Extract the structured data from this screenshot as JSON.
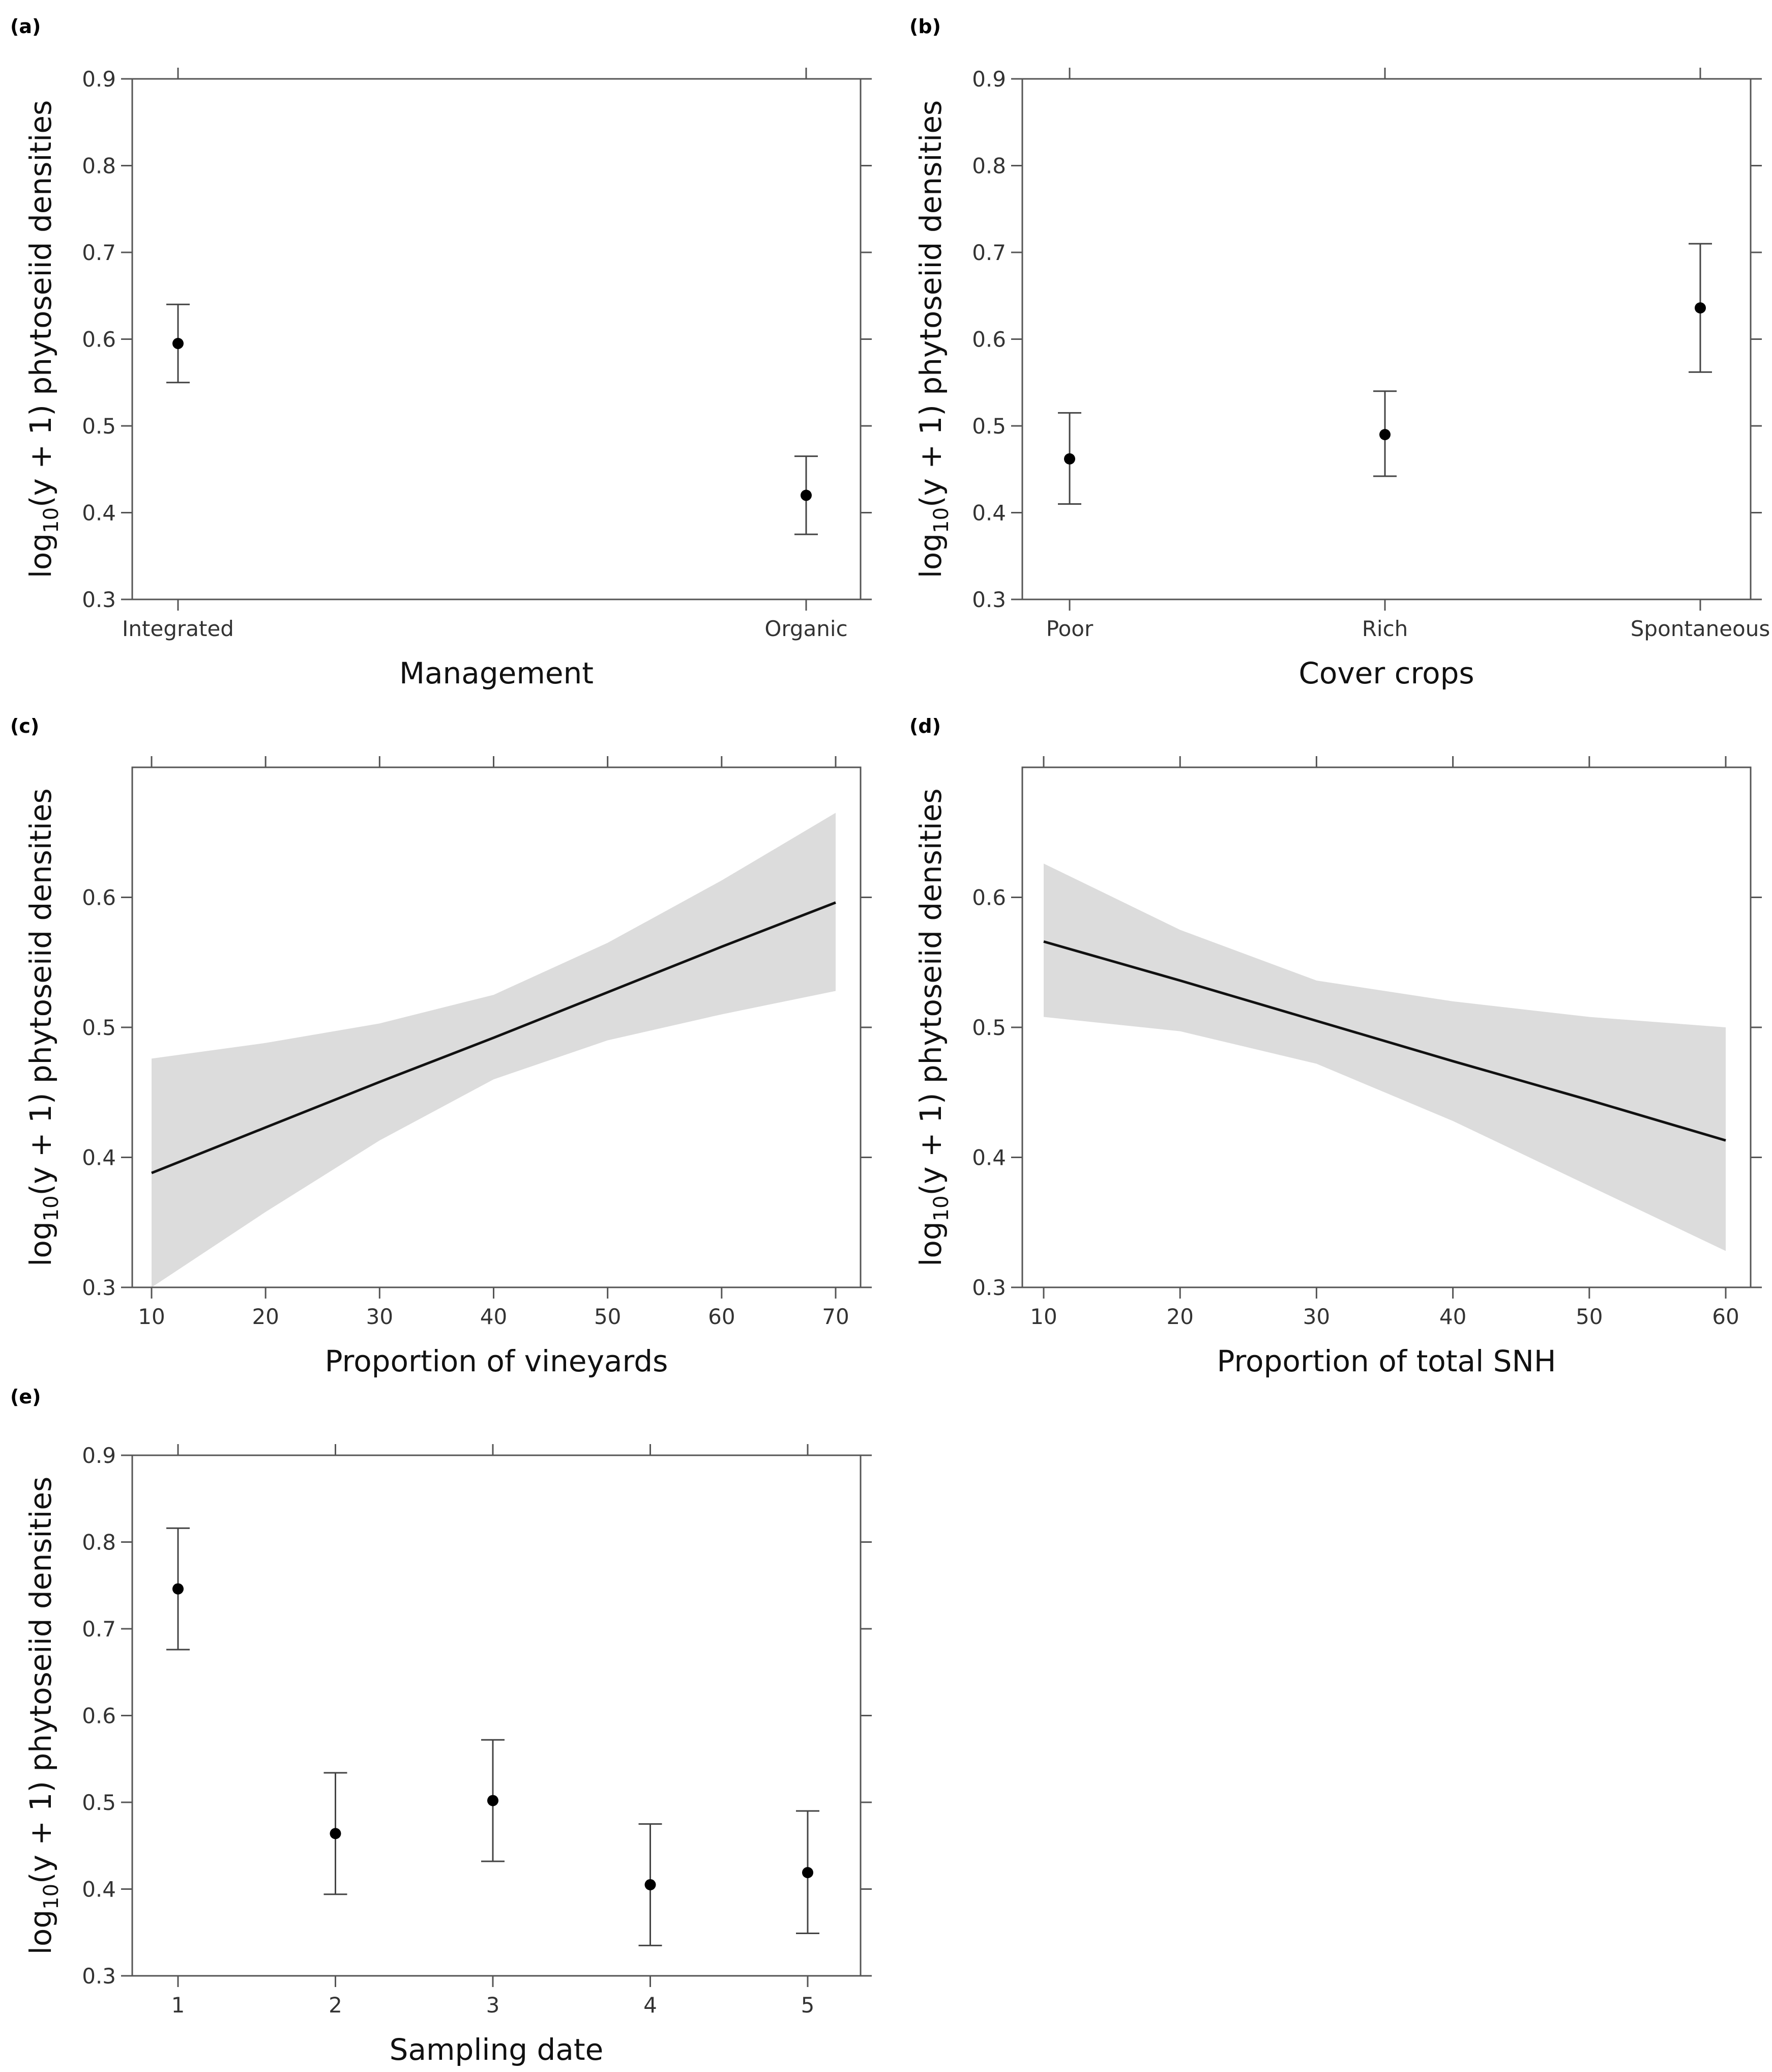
{
  "chart_data": [
    {
      "id": "a",
      "panel_label": "(a)",
      "type": "scatter",
      "variant": "point-errorbar",
      "categories": [
        "Integrated",
        "Organic"
      ],
      "values": [
        0.595,
        0.42
      ],
      "lower": [
        0.55,
        0.375
      ],
      "upper": [
        0.64,
        0.465
      ],
      "xlabel": "Management",
      "ylabel_main": "log",
      "ylabel_sub": "10",
      "ylabel_rest": "(y + 1)  phytoseiid densities",
      "ylim": [
        0.3,
        0.9
      ],
      "yticks": [
        "0.3",
        "0.4",
        "0.5",
        "0.6",
        "0.7",
        "0.8",
        "0.9"
      ],
      "grid": false
    },
    {
      "id": "b",
      "panel_label": "(b)",
      "type": "scatter",
      "variant": "point-errorbar",
      "categories": [
        "Poor",
        "Rich",
        "Spontaneous"
      ],
      "values": [
        0.462,
        0.49,
        0.636
      ],
      "lower": [
        0.41,
        0.442,
        0.562
      ],
      "upper": [
        0.515,
        0.54,
        0.71
      ],
      "xlabel": "Cover crops",
      "ylabel_main": "log",
      "ylabel_sub": "10",
      "ylabel_rest": "(y + 1)  phytoseiid densities",
      "ylim": [
        0.3,
        0.9
      ],
      "yticks": [
        "0.3",
        "0.4",
        "0.5",
        "0.6",
        "0.7",
        "0.8",
        "0.9"
      ],
      "grid": false
    },
    {
      "id": "c",
      "panel_label": "(c)",
      "type": "line",
      "x": [
        10,
        20,
        30,
        40,
        50,
        60,
        70
      ],
      "fit": [
        0.388,
        0.423,
        0.458,
        0.492,
        0.527,
        0.562,
        0.596
      ],
      "band_upper": [
        0.476,
        0.488,
        0.503,
        0.525,
        0.565,
        0.613,
        0.665
      ],
      "band_lower": [
        0.3,
        0.358,
        0.413,
        0.46,
        0.49,
        0.51,
        0.528
      ],
      "xlabel": "Proportion of vineyards",
      "ylabel_main": "log",
      "ylabel_sub": "10",
      "ylabel_rest": "(y + 1)  phytoseiid densities",
      "xlim": [
        8.5,
        72
      ],
      "ylim": [
        0.3,
        0.7
      ],
      "xticks": [
        "10",
        "20",
        "30",
        "40",
        "50",
        "60",
        "70"
      ],
      "yticks": [
        "0.3",
        "0.4",
        "0.5",
        "0.6"
      ],
      "grid": false
    },
    {
      "id": "d",
      "panel_label": "(d)",
      "type": "line",
      "x": [
        10,
        20,
        30,
        40,
        50,
        60
      ],
      "fit": [
        0.566,
        0.536,
        0.505,
        0.474,
        0.444,
        0.413
      ],
      "band_upper": [
        0.626,
        0.575,
        0.536,
        0.52,
        0.508,
        0.5
      ],
      "band_lower": [
        0.508,
        0.497,
        0.472,
        0.428,
        0.378,
        0.328
      ],
      "xlabel": "Proportion of total SNH",
      "ylabel_main": "log",
      "ylabel_sub": "10",
      "ylabel_rest": "(y + 1)  phytoseiid densities",
      "xlim": [
        8.5,
        62
      ],
      "ylim": [
        0.3,
        0.7
      ],
      "xticks": [
        "10",
        "20",
        "30",
        "40",
        "50",
        "60"
      ],
      "yticks": [
        "0.3",
        "0.4",
        "0.5",
        "0.6"
      ],
      "grid": false
    },
    {
      "id": "e",
      "panel_label": "(e)",
      "type": "scatter",
      "variant": "point-errorbar",
      "categories": [
        "1",
        "2",
        "3",
        "4",
        "5"
      ],
      "values": [
        0.746,
        0.464,
        0.502,
        0.405,
        0.419
      ],
      "lower": [
        0.676,
        0.394,
        0.432,
        0.335,
        0.349
      ],
      "upper": [
        0.816,
        0.534,
        0.572,
        0.475,
        0.49
      ],
      "xlabel": "Sampling date",
      "ylabel_main": "log",
      "ylabel_sub": "10",
      "ylabel_rest": "(y + 1)  phytoseiid densities",
      "ylim": [
        0.3,
        0.9
      ],
      "yticks": [
        "0.3",
        "0.4",
        "0.5",
        "0.6",
        "0.7",
        "0.8",
        "0.9"
      ],
      "grid": false
    }
  ]
}
